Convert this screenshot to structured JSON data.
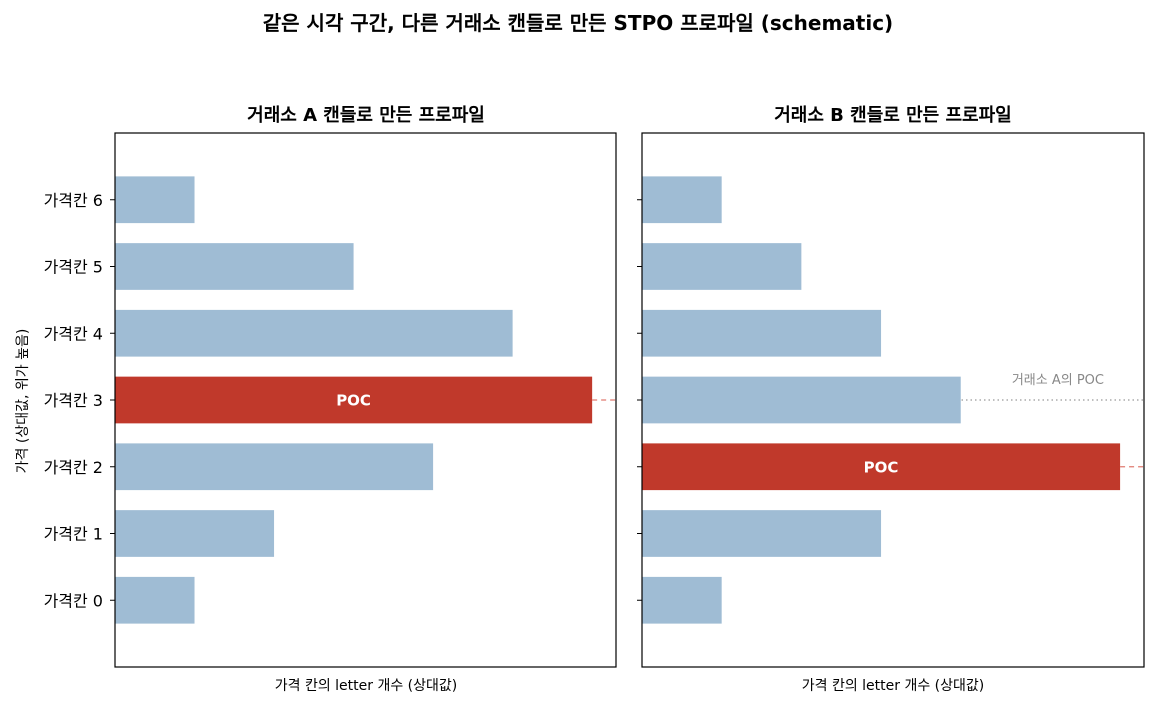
{
  "title": "같은 시각 구간, 다른 거래소 캔들로 만든 STPO 프로파일 (schematic)",
  "ylabel": "가격 (상대값, 위가 높음)",
  "colors": {
    "bar": "#9fbcd4",
    "poc": "#c0392b",
    "poc_line": "#e07b70",
    "ref_line": "#999999"
  },
  "chart_data": [
    {
      "type": "bar",
      "orientation": "horizontal",
      "title": "거래소 A 캔들로 만든 프로파일",
      "xlabel": "가격 칸의 letter 개수 (상대값)",
      "categories": [
        "가격칸 0",
        "가격칸 1",
        "가격칸 2",
        "가격칸 3",
        "가격칸 4",
        "가격칸 5",
        "가격칸 6"
      ],
      "values": [
        1,
        2,
        4,
        6,
        5,
        3,
        1
      ],
      "xlim": [
        0,
        6.3
      ],
      "poc_index": 3,
      "poc_label": "POC"
    },
    {
      "type": "bar",
      "orientation": "horizontal",
      "title": "거래소 B 캔들로 만든 프로파일",
      "xlabel": "가격 칸의 letter 개수 (상대값)",
      "categories": [
        "가격칸 0",
        "가격칸 1",
        "가격칸 2",
        "가격칸 3",
        "가격칸 4",
        "가격칸 5",
        "가격칸 6"
      ],
      "values": [
        1,
        3,
        6,
        4,
        3,
        2,
        1
      ],
      "xlim": [
        0,
        6.3
      ],
      "poc_index": 2,
      "poc_label": "POC",
      "reference_index": 3,
      "reference_label": "거래소 A의 POC"
    }
  ]
}
